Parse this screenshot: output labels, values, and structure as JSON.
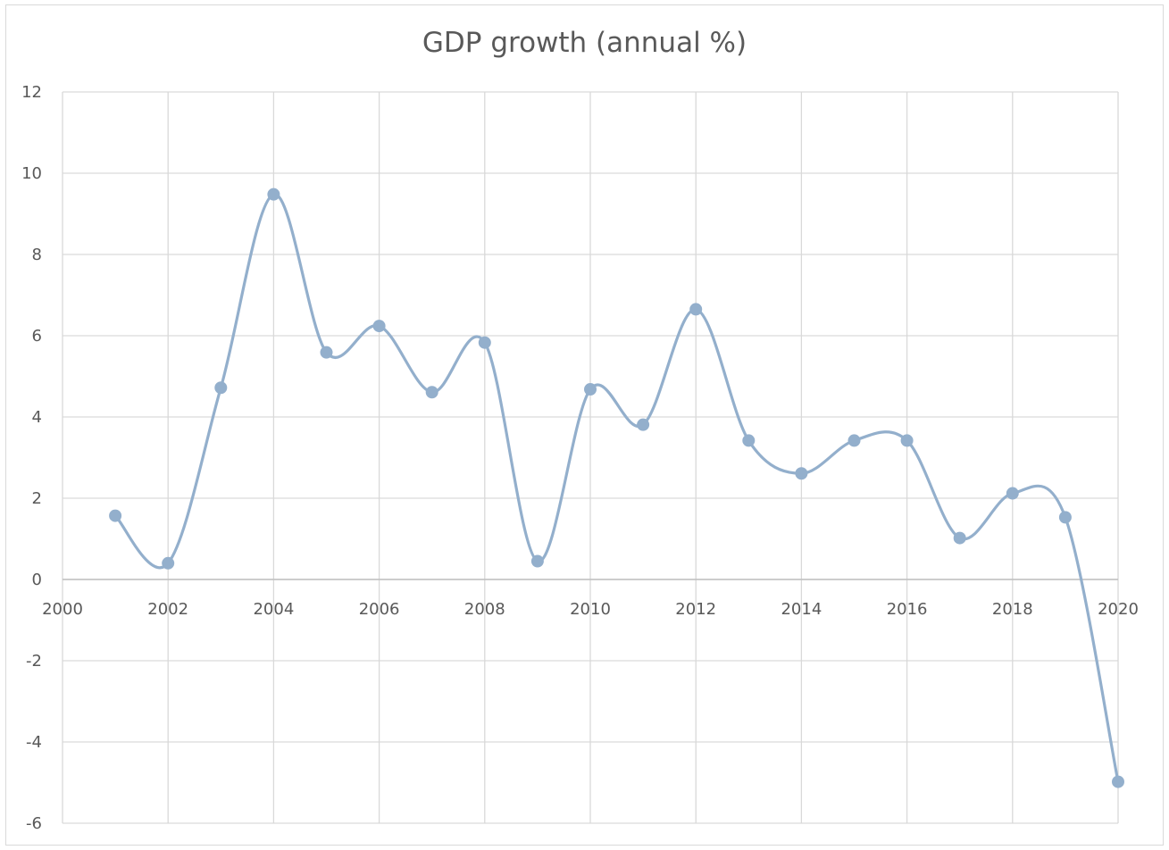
{
  "chart_data": {
    "type": "scatter",
    "title": "GDP growth (annual %)",
    "xlabel": "",
    "ylabel": "",
    "xlim": [
      2000,
      2020
    ],
    "ylim": [
      -6,
      12
    ],
    "x_ticks": [
      2000,
      2002,
      2004,
      2006,
      2008,
      2010,
      2012,
      2014,
      2016,
      2018,
      2020
    ],
    "y_ticks": [
      -6,
      -4,
      -2,
      0,
      2,
      4,
      6,
      8,
      10,
      12
    ],
    "grid": true,
    "smoothed_line": true,
    "series": [
      {
        "color": "#93afcc",
        "x": [
          2001,
          2002,
          2003,
          2004,
          2005,
          2006,
          2007,
          2008,
          2009,
          2010,
          2011,
          2012,
          2013,
          2014,
          2015,
          2016,
          2017,
          2018,
          2019,
          2020
        ],
        "y": [
          1.57,
          0.4,
          4.72,
          9.48,
          5.59,
          6.24,
          4.61,
          5.83,
          0.45,
          4.68,
          3.81,
          6.65,
          3.42,
          2.61,
          3.42,
          3.42,
          1.02,
          2.12,
          1.53,
          -4.98
        ]
      }
    ]
  }
}
